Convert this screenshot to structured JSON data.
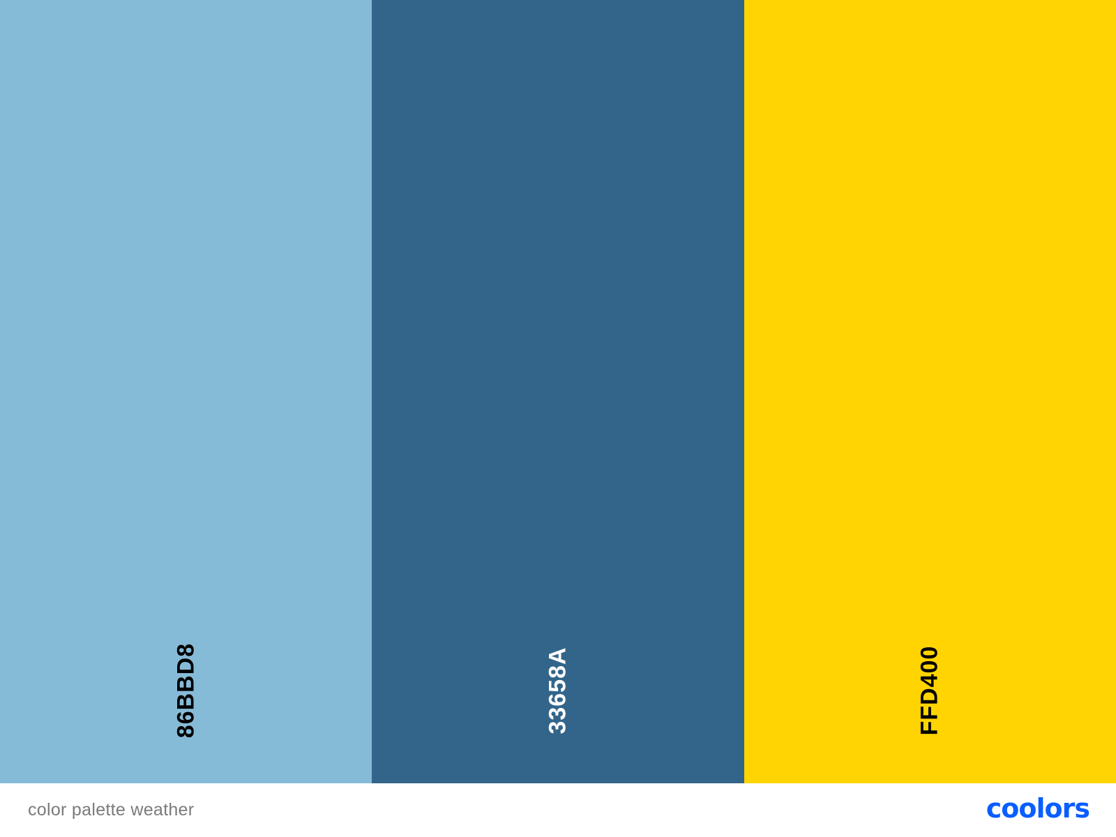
{
  "palette": {
    "swatches": [
      {
        "hex": "86BBD8",
        "color": "#86BBD8",
        "text_color": "#000000"
      },
      {
        "hex": "33658A",
        "color": "#33658A",
        "text_color": "#ffffff"
      },
      {
        "hex": "FFD400",
        "color": "#FFD400",
        "text_color": "#000000"
      }
    ]
  },
  "footer": {
    "palette_name": "color palette weather",
    "logo_text": "coolors",
    "logo_color": "#0A5EFF"
  }
}
